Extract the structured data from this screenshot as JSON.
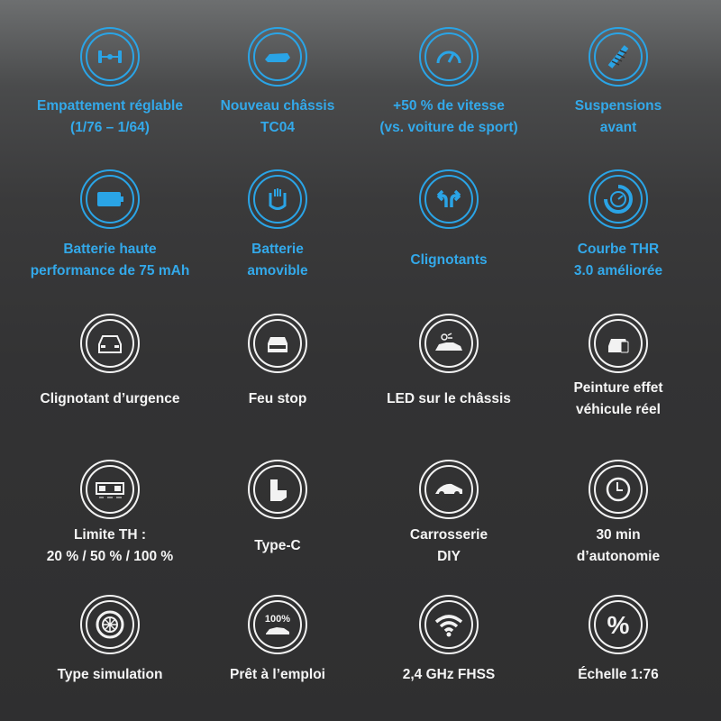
{
  "accent_color": "#2aa4e6",
  "features": [
    {
      "label": "Empattement réglable\n(1/76 – 1/64)",
      "icon": "wheelbase-axle-icon",
      "color": "blue"
    },
    {
      "label": "Nouveau châssis\nTC04",
      "icon": "chassis-icon",
      "color": "blue"
    },
    {
      "label": "+50 % de vitesse\n(vs. voiture de sport)",
      "icon": "speedometer-icon",
      "color": "blue"
    },
    {
      "label": "Suspensions\navant",
      "icon": "spring-icon",
      "color": "blue"
    },
    {
      "label": "Batterie haute\nperformance de 75 mAh",
      "icon": "battery-icon",
      "color": "blue"
    },
    {
      "label": "Batterie\namovible",
      "icon": "battery-plug-icon",
      "color": "blue"
    },
    {
      "label": "Clignotants",
      "icon": "turn-arrows-icon",
      "color": "blue"
    },
    {
      "label": "Courbe THR\n3.0 améliorée",
      "icon": "throttle-curve-icon",
      "color": "blue"
    },
    {
      "label": "Clignotant d’urgence",
      "icon": "car-front-hazard-icon",
      "color": "white"
    },
    {
      "label": "Feu stop",
      "icon": "car-rear-brake-icon",
      "color": "white"
    },
    {
      "label": "LED sur le châssis",
      "icon": "car-led-icon",
      "color": "white"
    },
    {
      "label": "Peinture effet\nvéhicule réel",
      "icon": "car-paint-icon",
      "color": "white"
    },
    {
      "label": "Limite TH :\n20 % / 50 % / 100 %",
      "icon": "throttle-limit-switch-icon",
      "color": "white"
    },
    {
      "label": "Type-C",
      "icon": "usb-c-icon",
      "color": "white"
    },
    {
      "label": "Carrosserie\nDIY",
      "icon": "car-body-icon",
      "color": "white"
    },
    {
      "label": "30 min\nd’autonomie",
      "icon": "clock-icon",
      "color": "white"
    },
    {
      "label": "Type simulation",
      "icon": "tire-icon",
      "color": "white"
    },
    {
      "label": "Prêt à l’emploi",
      "icon": "ready-to-run-100-icon",
      "color": "white",
      "icon_text": "100%"
    },
    {
      "label": "2,4 GHz FHSS",
      "icon": "wifi-signal-icon",
      "color": "white"
    },
    {
      "label": "Échelle 1:76",
      "icon": "percent-icon",
      "color": "white",
      "icon_text": "%"
    }
  ]
}
